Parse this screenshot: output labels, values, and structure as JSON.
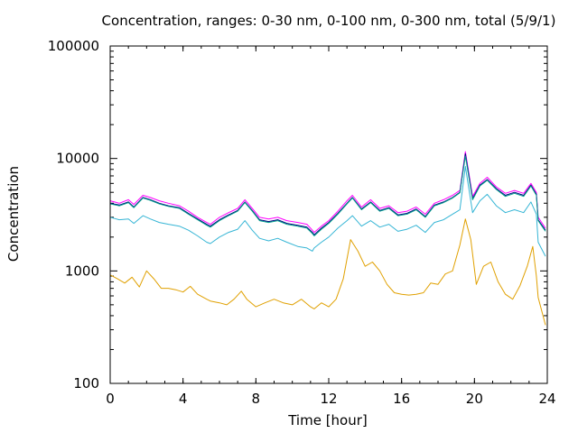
{
  "chart_data": {
    "type": "line",
    "title": "Concentration, ranges: 0-30 nm, 0-100 nm, 0-300 nm, total (5/9/1)",
    "xlabel": "Time [hour]",
    "ylabel": "Concentration",
    "xlim": [
      0,
      24
    ],
    "ylim": [
      100,
      100000
    ],
    "yscale": "log",
    "xticks": [
      "0",
      "4",
      "8",
      "12",
      "16",
      "20",
      "24"
    ],
    "yticks": [
      "100",
      "1000",
      "10000",
      "100000"
    ],
    "grid": false,
    "series": [
      {
        "color": "#ff00ff",
        "x": [
          0,
          0.5,
          1,
          1.3,
          1.8,
          2.2,
          2.7,
          3.2,
          3.8,
          4.3,
          4.8,
          5.3,
          5.5,
          6,
          6.5,
          7,
          7.4,
          7.8,
          8.2,
          8.7,
          9.2,
          9.7,
          10.3,
          10.8,
          11.1,
          11.2,
          11.6,
          12,
          12.5,
          13,
          13.3,
          13.8,
          14.3,
          14.8,
          15.3,
          15.8,
          16.3,
          16.8,
          17.3,
          17.8,
          18.3,
          18.8,
          19.2,
          19.5,
          19.9,
          20.3,
          20.7,
          21.2,
          21.7,
          22.2,
          22.7,
          23.1,
          23.4,
          23.5,
          23.9
        ],
        "y": [
          4200,
          4000,
          4300,
          3900,
          4700,
          4500,
          4200,
          4000,
          3800,
          3400,
          3000,
          2700,
          2600,
          3000,
          3300,
          3600,
          4300,
          3600,
          3000,
          2900,
          3000,
          2800,
          2700,
          2600,
          2300,
          2200,
          2500,
          2800,
          3400,
          4200,
          4700,
          3700,
          4300,
          3600,
          3800,
          3300,
          3400,
          3700,
          3200,
          4000,
          4300,
          4700,
          5200,
          11500,
          4600,
          6000,
          6800,
          5600,
          4900,
          5200,
          4900,
          6000,
          5000,
          3000,
          2400
        ]
      },
      {
        "color": "#000080",
        "x": [
          0,
          0.5,
          1,
          1.3,
          1.8,
          2.2,
          2.7,
          3.2,
          3.8,
          4.3,
          4.8,
          5.3,
          5.5,
          6,
          6.5,
          7,
          7.4,
          7.8,
          8.2,
          8.7,
          9.2,
          9.7,
          10.3,
          10.8,
          11.1,
          11.2,
          11.6,
          12,
          12.5,
          13,
          13.3,
          13.8,
          14.3,
          14.8,
          15.3,
          15.8,
          16.3,
          16.8,
          17.3,
          17.8,
          18.3,
          18.8,
          19.2,
          19.5,
          19.9,
          20.3,
          20.7,
          21.2,
          21.7,
          22.2,
          22.7,
          23.1,
          23.4,
          23.5,
          23.9
        ],
        "y": [
          4000,
          3850,
          4100,
          3700,
          4500,
          4300,
          4000,
          3800,
          3650,
          3250,
          2900,
          2600,
          2500,
          2850,
          3150,
          3450,
          4100,
          3450,
          2850,
          2750,
          2850,
          2650,
          2550,
          2450,
          2200,
          2100,
          2400,
          2700,
          3250,
          4000,
          4500,
          3550,
          4100,
          3450,
          3650,
          3150,
          3250,
          3550,
          3050,
          3850,
          4100,
          4500,
          5000,
          11000,
          4400,
          5800,
          6500,
          5400,
          4700,
          5000,
          4700,
          5800,
          4800,
          2850,
          2300
        ]
      },
      {
        "color": "#00a08a",
        "x": [
          0,
          0.5,
          1,
          1.3,
          1.8,
          2.2,
          2.7,
          3.2,
          3.8,
          4.3,
          4.8,
          5.3,
          5.5,
          6,
          6.5,
          7,
          7.4,
          7.8,
          8.2,
          8.7,
          9.2,
          9.7,
          10.3,
          10.8,
          11.1,
          11.2,
          11.6,
          12,
          12.5,
          13,
          13.3,
          13.8,
          14.3,
          14.8,
          15.3,
          15.8,
          16.3,
          16.8,
          17.3,
          17.8,
          18.3,
          18.8,
          19.2,
          19.5,
          19.9,
          20.3,
          20.7,
          21.2,
          21.7,
          22.2,
          22.7,
          23.1,
          23.4,
          23.5,
          23.9
        ],
        "y": [
          3950,
          3800,
          4050,
          3650,
          4450,
          4250,
          3950,
          3750,
          3600,
          3200,
          2850,
          2550,
          2450,
          2800,
          3100,
          3400,
          4050,
          3400,
          2800,
          2700,
          2800,
          2600,
          2500,
          2400,
          2150,
          2050,
          2350,
          2650,
          3200,
          3950,
          4450,
          3500,
          4050,
          3400,
          3600,
          3100,
          3200,
          3500,
          3000,
          3800,
          4050,
          4450,
          4950,
          10500,
          4300,
          5700,
          6400,
          5300,
          4600,
          4900,
          4600,
          5700,
          4700,
          2800,
          2250
        ]
      },
      {
        "color": "#35b5d5",
        "x": [
          0,
          0.5,
          1,
          1.3,
          1.8,
          2.2,
          2.7,
          3.2,
          3.8,
          4.3,
          4.8,
          5.3,
          5.5,
          6,
          6.5,
          7,
          7.4,
          7.8,
          8.2,
          8.7,
          9.2,
          9.7,
          10.3,
          10.8,
          11.1,
          11.2,
          11.6,
          12,
          12.5,
          13,
          13.3,
          13.8,
          14.3,
          14.8,
          15.3,
          15.8,
          16.3,
          16.8,
          17.3,
          17.8,
          18.3,
          18.8,
          19.2,
          19.5,
          19.9,
          20.3,
          20.7,
          21.2,
          21.7,
          22.2,
          22.7,
          23.1,
          23.4,
          23.5,
          23.9
        ],
        "y": [
          3000,
          2850,
          2900,
          2650,
          3100,
          2900,
          2700,
          2600,
          2500,
          2300,
          2050,
          1800,
          1750,
          2000,
          2200,
          2350,
          2800,
          2300,
          1950,
          1850,
          1950,
          1800,
          1650,
          1600,
          1500,
          1600,
          1800,
          2000,
          2400,
          2800,
          3100,
          2500,
          2800,
          2450,
          2600,
          2250,
          2350,
          2550,
          2200,
          2700,
          2850,
          3200,
          3500,
          8500,
          3300,
          4200,
          4800,
          3800,
          3300,
          3500,
          3300,
          4100,
          3200,
          1800,
          1350
        ]
      },
      {
        "color": "#e0a000",
        "x": [
          0,
          0.4,
          0.8,
          1.2,
          1.6,
          2,
          2.4,
          2.8,
          3.2,
          3.6,
          4,
          4.4,
          4.8,
          5.3,
          5.5,
          6,
          6.4,
          6.8,
          7.2,
          7.5,
          8,
          8.5,
          9,
          9.5,
          10,
          10.5,
          11,
          11.2,
          11.6,
          12,
          12.4,
          12.8,
          13.2,
          13.6,
          14,
          14.4,
          14.8,
          15.2,
          15.6,
          16,
          16.4,
          16.8,
          17.2,
          17.6,
          18,
          18.4,
          18.8,
          19.2,
          19.5,
          19.8,
          20.1,
          20.5,
          20.9,
          21.3,
          21.7,
          22.1,
          22.5,
          22.9,
          23.2,
          23.4,
          23.5,
          23.9
        ],
        "y": [
          920,
          850,
          780,
          880,
          720,
          1000,
          850,
          700,
          700,
          680,
          650,
          730,
          620,
          560,
          540,
          520,
          500,
          560,
          660,
          560,
          480,
          520,
          560,
          520,
          500,
          560,
          480,
          460,
          520,
          480,
          560,
          850,
          1900,
          1500,
          1100,
          1200,
          1000,
          760,
          640,
          620,
          610,
          620,
          640,
          780,
          760,
          940,
          1000,
          1700,
          2900,
          1900,
          760,
          1100,
          1200,
          800,
          620,
          560,
          740,
          1100,
          1650,
          900,
          580,
          330
        ]
      }
    ]
  }
}
